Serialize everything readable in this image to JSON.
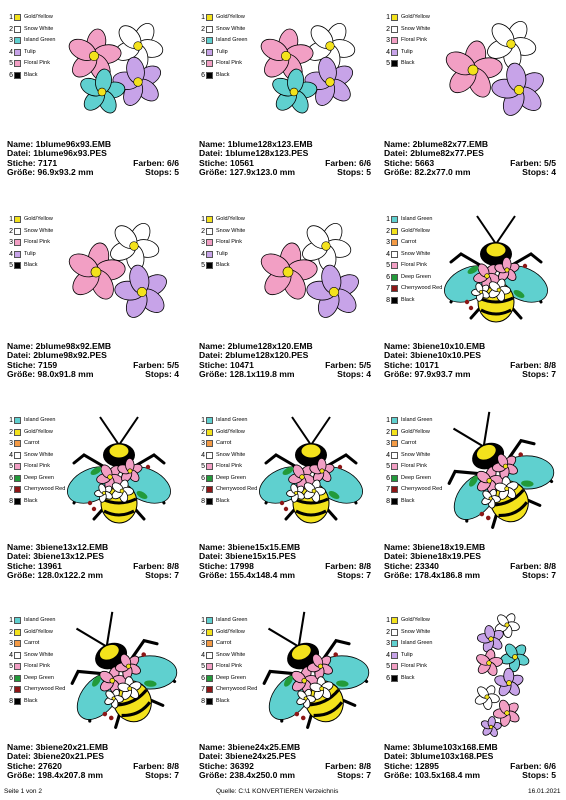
{
  "colors": {
    "Gold/Yellow": "#f3e21c",
    "Snow White": "#ffffff",
    "Island Green": "#5fd0cf",
    "Tulip": "#c7a3e8",
    "Floral Pink": "#f29fc4",
    "Black": "#000000",
    "Carrot": "#f39a45",
    "Deep Green": "#229a3a",
    "Cherrywood Red": "#8d1616"
  },
  "cards": [
    {
      "art": "flowers",
      "palette": [
        "Gold/Yellow",
        "Snow White",
        "Island Green",
        "Tulip",
        "Floral Pink",
        "Black"
      ],
      "name": "Name: 1blume96x93.EMB",
      "datei": "Datei: 1blume96x93.PES",
      "stiche": "Stiche: 7171",
      "farben": "Farben: 6/6",
      "groesse": "Größe: 96.9x93.2 mm",
      "stops": "Stops: 5"
    },
    {
      "art": "flowers",
      "palette": [
        "Gold/Yellow",
        "Snow White",
        "Island Green",
        "Tulip",
        "Floral Pink",
        "Black"
      ],
      "name": "Name: 1blume128x123.EMB",
      "datei": "Datei: 1blume128x123.PES",
      "stiche": "Stiche: 10561",
      "farben": "Farben: 6/6",
      "groesse": "Größe: 127.9x123.0 mm",
      "stops": "Stops: 5"
    },
    {
      "art": "flowers2",
      "palette": [
        "Gold/Yellow",
        "Snow White",
        "Floral Pink",
        "Tulip",
        "Black"
      ],
      "name": "Name: 2blume82x77.EMB",
      "datei": "Datei: 2blume82x77.PES",
      "stiche": "Stiche: 5663",
      "farben": "Farben: 5/5",
      "groesse": "Größe: 82.2x77.0 mm",
      "stops": "Stops: 4"
    },
    {
      "art": "flowers2",
      "palette": [
        "Gold/Yellow",
        "Snow White",
        "Floral Pink",
        "Tulip",
        "Black"
      ],
      "name": "Name: 2blume98x92.EMB",
      "datei": "Datei: 2blume98x92.PES",
      "stiche": "Stiche: 7159",
      "farben": "Farben: 5/5",
      "groesse": "Größe: 98.0x91.8 mm",
      "stops": "Stops: 4"
    },
    {
      "art": "flowers2",
      "palette": [
        "Gold/Yellow",
        "Snow White",
        "Floral Pink",
        "Tulip",
        "Black"
      ],
      "name": "Name: 2blume128x120.EMB",
      "datei": "Datei: 2blume128x120.PES",
      "stiche": "Stiche: 10471",
      "farben": "Farben: 5/5",
      "groesse": "Größe: 128.1x119.8 mm",
      "stops": "Stops: 4"
    },
    {
      "art": "bee",
      "palette": [
        "Island Green",
        "Gold/Yellow",
        "Carrot",
        "Snow White",
        "Floral Pink",
        "Deep Green",
        "Cherrywood Red",
        "Black"
      ],
      "name": "Name: 3biene10x10.EMB",
      "datei": "Datei: 3biene10x10.PES",
      "stiche": "Stiche: 10171",
      "farben": "Farben: 8/8",
      "groesse": "Größe: 97.9x93.7 mm",
      "stops": "Stops: 7"
    },
    {
      "art": "bee",
      "palette": [
        "Island Green",
        "Gold/Yellow",
        "Carrot",
        "Snow White",
        "Floral Pink",
        "Deep Green",
        "Cherrywood Red",
        "Black"
      ],
      "name": "Name: 3biene13x12.EMB",
      "datei": "Datei: 3biene13x12.PES",
      "stiche": "Stiche: 13961",
      "farben": "Farben: 8/8",
      "groesse": "Größe: 128.0x122.2 mm",
      "stops": "Stops: 7"
    },
    {
      "art": "bee",
      "palette": [
        "Island Green",
        "Gold/Yellow",
        "Carrot",
        "Snow White",
        "Floral Pink",
        "Deep Green",
        "Cherrywood Red",
        "Black"
      ],
      "name": "Name: 3biene15x15.EMB",
      "datei": "Datei: 3biene15x15.PES",
      "stiche": "Stiche: 17998",
      "farben": "Farben: 8/8",
      "groesse": "Größe: 155.4x148.4 mm",
      "stops": "Stops: 7"
    },
    {
      "art": "bee-rot",
      "palette": [
        "Island Green",
        "Gold/Yellow",
        "Carrot",
        "Snow White",
        "Floral Pink",
        "Deep Green",
        "Cherrywood Red",
        "Black"
      ],
      "name": "Name: 3biene18x19.EMB",
      "datei": "Datei: 3biene18x19.PES",
      "stiche": "Stiche: 23340",
      "farben": "Farben: 8/8",
      "groesse": "Größe: 178.4x186.8 mm",
      "stops": "Stops: 7"
    },
    {
      "art": "bee-rot",
      "palette": [
        "Island Green",
        "Gold/Yellow",
        "Carrot",
        "Snow White",
        "Floral Pink",
        "Deep Green",
        "Cherrywood Red",
        "Black"
      ],
      "name": "Name: 3biene20x21.EMB",
      "datei": "Datei: 3biene20x21.PES",
      "stiche": "Stiche: 27620",
      "farben": "Farben: 8/8",
      "groesse": "Größe: 198.4x207.8 mm",
      "stops": "Stops: 7"
    },
    {
      "art": "bee-rot",
      "palette": [
        "Island Green",
        "Gold/Yellow",
        "Carrot",
        "Snow White",
        "Floral Pink",
        "Deep Green",
        "Cherrywood Red",
        "Black"
      ],
      "name": "Name: 3biene24x25.EMB",
      "datei": "Datei: 3biene24x25.PES",
      "stiche": "Stiche: 36392",
      "farben": "Farben: 8/8",
      "groesse": "Größe: 238.4x250.0 mm",
      "stops": "Stops: 7"
    },
    {
      "art": "column",
      "palette": [
        "Gold/Yellow",
        "Snow White",
        "Island Green",
        "Tulip",
        "Floral Pink",
        "Black"
      ],
      "name": "Name: 3blume103x168.EMB",
      "datei": "Datei: 3blume103x168.PES",
      "stiche": "Stiche: 12895",
      "farben": "Farben: 6/6",
      "groesse": "Größe: 103.5x168.4 mm",
      "stops": "Stops: 5"
    }
  ],
  "footer": {
    "page": "Seite 1 von 2",
    "source": "Quelle: C:\\1 KONVERTIEREN Verzeichnis",
    "date": "16.01.2021"
  }
}
